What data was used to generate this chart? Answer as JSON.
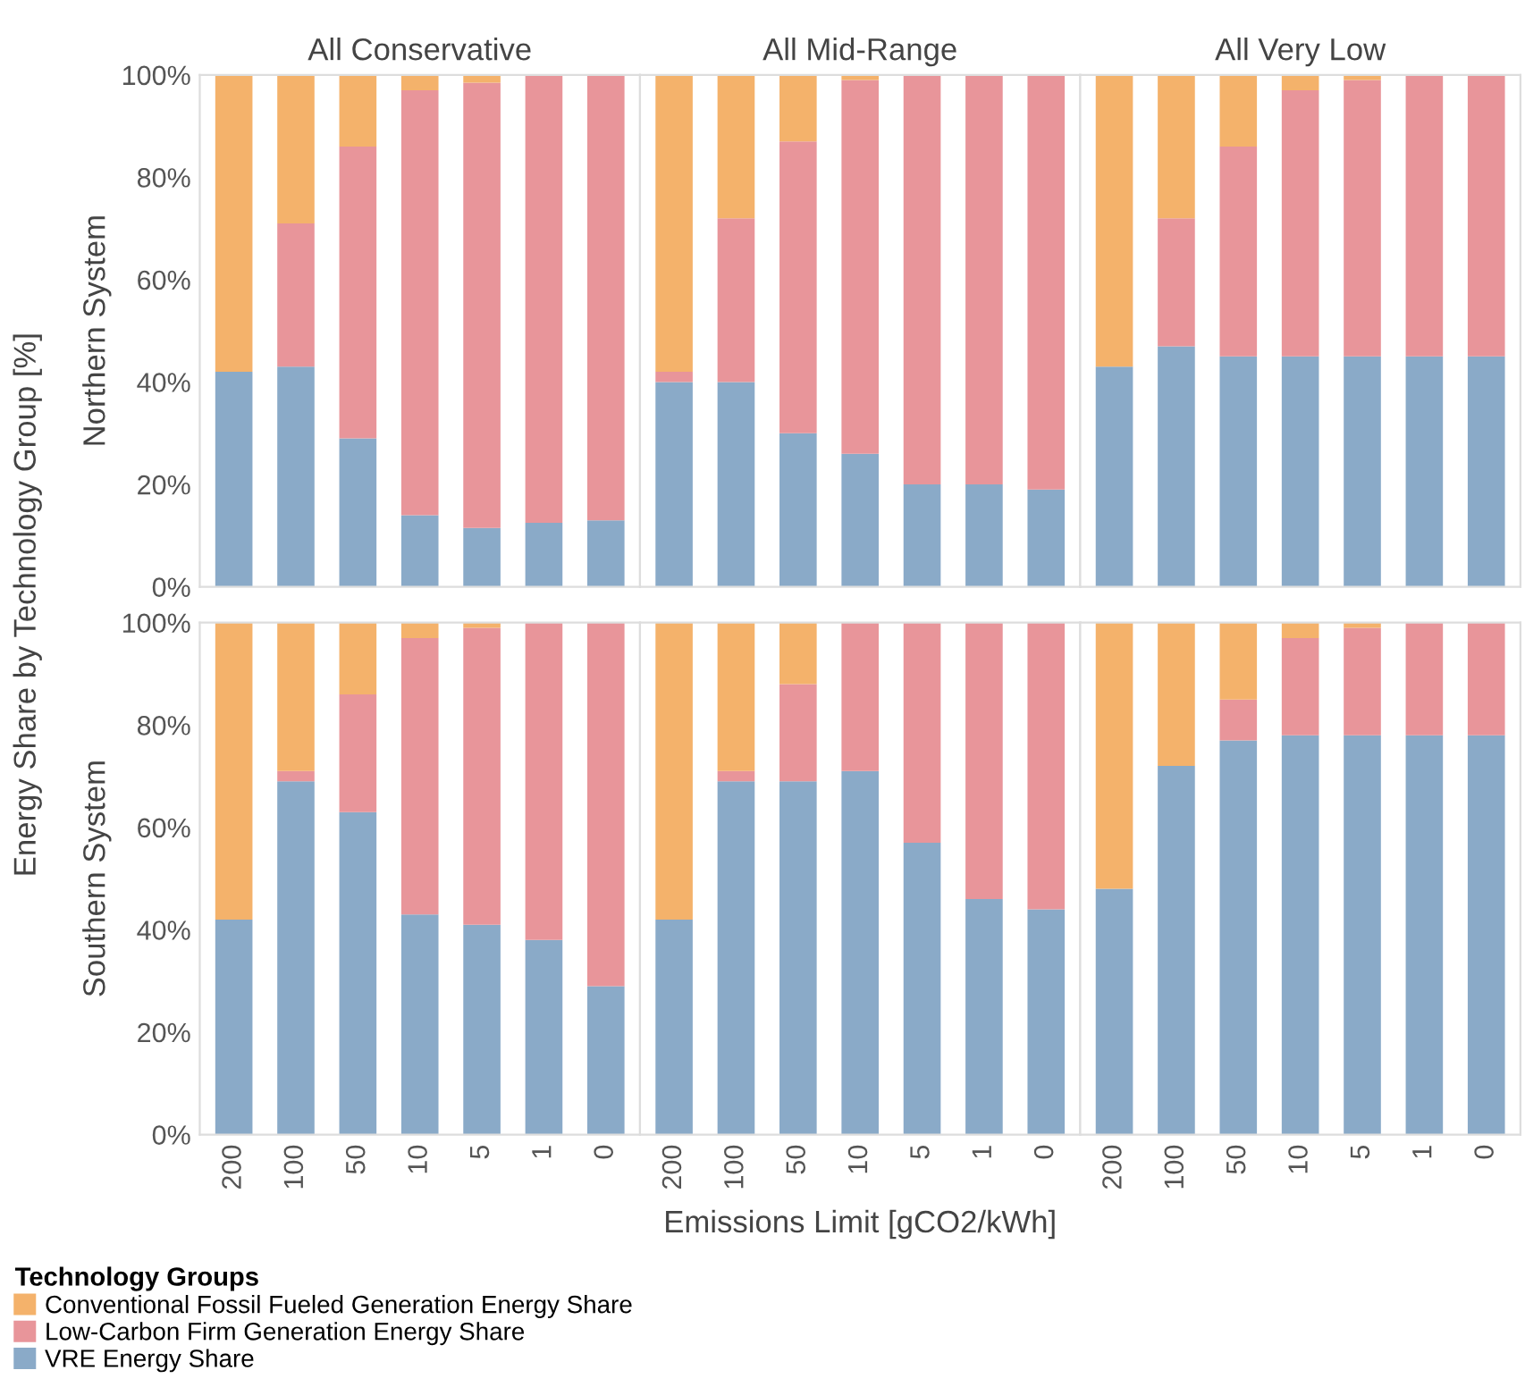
{
  "chart_data": [
    {
      "type": "bar",
      "stacked": true,
      "title": "All Conservative",
      "ylabel": "Northern System",
      "legend": "bottom",
      "legend_title": "Technology Groups",
      "annotations": [
        "Energy Share by Technology Group [%]"
      ],
      "categories": [
        "200",
        "100",
        "50",
        "10",
        "5",
        "1",
        "0"
      ],
      "ylim": [
        0,
        100
      ],
      "yticks": [
        {
          "value": 0,
          "label": "0%"
        },
        {
          "value": 20,
          "label": "20%"
        },
        {
          "value": 40,
          "label": "40%"
        },
        {
          "value": 60,
          "label": "60%"
        },
        {
          "value": 80,
          "label": "80%"
        },
        {
          "value": 100,
          "label": "100%"
        }
      ],
      "tick_labels": "y",
      "series": [
        {
          "name": "VRE Energy Share",
          "color": "#8aaac8",
          "values": [
            42,
            43,
            29,
            14,
            11.5,
            12.5,
            13
          ]
        },
        {
          "name": "Low-Carbon Firm Generation Energy Share",
          "color": "#e8959a",
          "values": [
            0,
            28,
            57,
            83,
            87,
            87.5,
            87
          ]
        },
        {
          "name": "Conventional Fossil Fueled Generation Energy Share",
          "color": "#f4b26b",
          "values": [
            58,
            29,
            14,
            3,
            1.5,
            0,
            0
          ]
        }
      ]
    },
    {
      "type": "bar",
      "stacked": true,
      "title": "All Mid-Range",
      "categories": [
        "200",
        "100",
        "50",
        "10",
        "5",
        "1",
        "0"
      ],
      "ylim": [
        0,
        100
      ],
      "tick_labels": false,
      "series": [
        {
          "color": "#8aaac8",
          "values": [
            40,
            40,
            30,
            26,
            20,
            20,
            19
          ]
        },
        {
          "color": "#e8959a",
          "values": [
            2,
            32,
            57,
            73,
            80,
            80,
            81
          ]
        },
        {
          "color": "#f4b26b",
          "values": [
            58,
            28,
            13,
            1,
            0,
            0,
            0
          ]
        }
      ]
    },
    {
      "type": "bar",
      "stacked": true,
      "title": "All Very Low",
      "categories": [
        "200",
        "100",
        "50",
        "10",
        "5",
        "1",
        "0"
      ],
      "ylim": [
        0,
        100
      ],
      "tick_labels": false,
      "series": [
        {
          "color": "#8aaac8",
          "values": [
            43,
            47,
            45,
            45,
            45,
            45,
            45
          ]
        },
        {
          "color": "#e8959a",
          "values": [
            0,
            25,
            41,
            52,
            54,
            55,
            55
          ]
        },
        {
          "color": "#f4b26b",
          "values": [
            57,
            28,
            14,
            3,
            1,
            0,
            0
          ]
        }
      ]
    },
    {
      "type": "bar",
      "stacked": true,
      "ylabel": "Southern System",
      "categories": [
        "200",
        "100",
        "50",
        "10",
        "5",
        "1",
        "0"
      ],
      "ylim": [
        0,
        100
      ],
      "yticks": [
        {
          "value": 0,
          "label": "0%"
        },
        {
          "value": 20,
          "label": "20%"
        },
        {
          "value": 40,
          "label": "40%"
        },
        {
          "value": 60,
          "label": "60%"
        },
        {
          "value": 80,
          "label": "80%"
        },
        {
          "value": 100,
          "label": "100%"
        }
      ],
      "series": [
        {
          "color": "#8aaac8",
          "values": [
            42,
            69,
            63,
            43,
            41,
            38,
            29
          ]
        },
        {
          "color": "#e8959a",
          "values": [
            0,
            2,
            23,
            54,
            58,
            62,
            71
          ]
        },
        {
          "color": "#f4b26b",
          "values": [
            58,
            29,
            14,
            3,
            1,
            0,
            0
          ]
        }
      ]
    },
    {
      "type": "bar",
      "stacked": true,
      "xlabel": "Emissions Limit [gCO2/kWh]",
      "categories": [
        "200",
        "100",
        "50",
        "10",
        "5",
        "1",
        "0"
      ],
      "ylim": [
        0,
        100
      ],
      "tick_labels": "x",
      "series": [
        {
          "color": "#8aaac8",
          "values": [
            42,
            69,
            69,
            71,
            57,
            46,
            44
          ]
        },
        {
          "color": "#e8959a",
          "values": [
            0,
            2,
            19,
            29,
            43,
            54,
            56
          ]
        },
        {
          "color": "#f4b26b",
          "values": [
            58,
            29,
            12,
            0,
            0,
            0,
            0
          ]
        }
      ]
    },
    {
      "type": "bar",
      "stacked": true,
      "categories": [
        "200",
        "100",
        "50",
        "10",
        "5",
        "1",
        "0"
      ],
      "ylim": [
        0,
        100
      ],
      "tick_labels": "x",
      "series": [
        {
          "color": "#8aaac8",
          "values": [
            48,
            72,
            77,
            78,
            78,
            78,
            78
          ]
        },
        {
          "color": "#e8959a",
          "values": [
            0,
            0,
            8,
            19,
            21,
            22,
            22
          ]
        },
        {
          "color": "#f4b26b",
          "values": [
            52,
            28,
            15,
            3,
            1,
            0,
            0
          ]
        }
      ]
    }
  ]
}
